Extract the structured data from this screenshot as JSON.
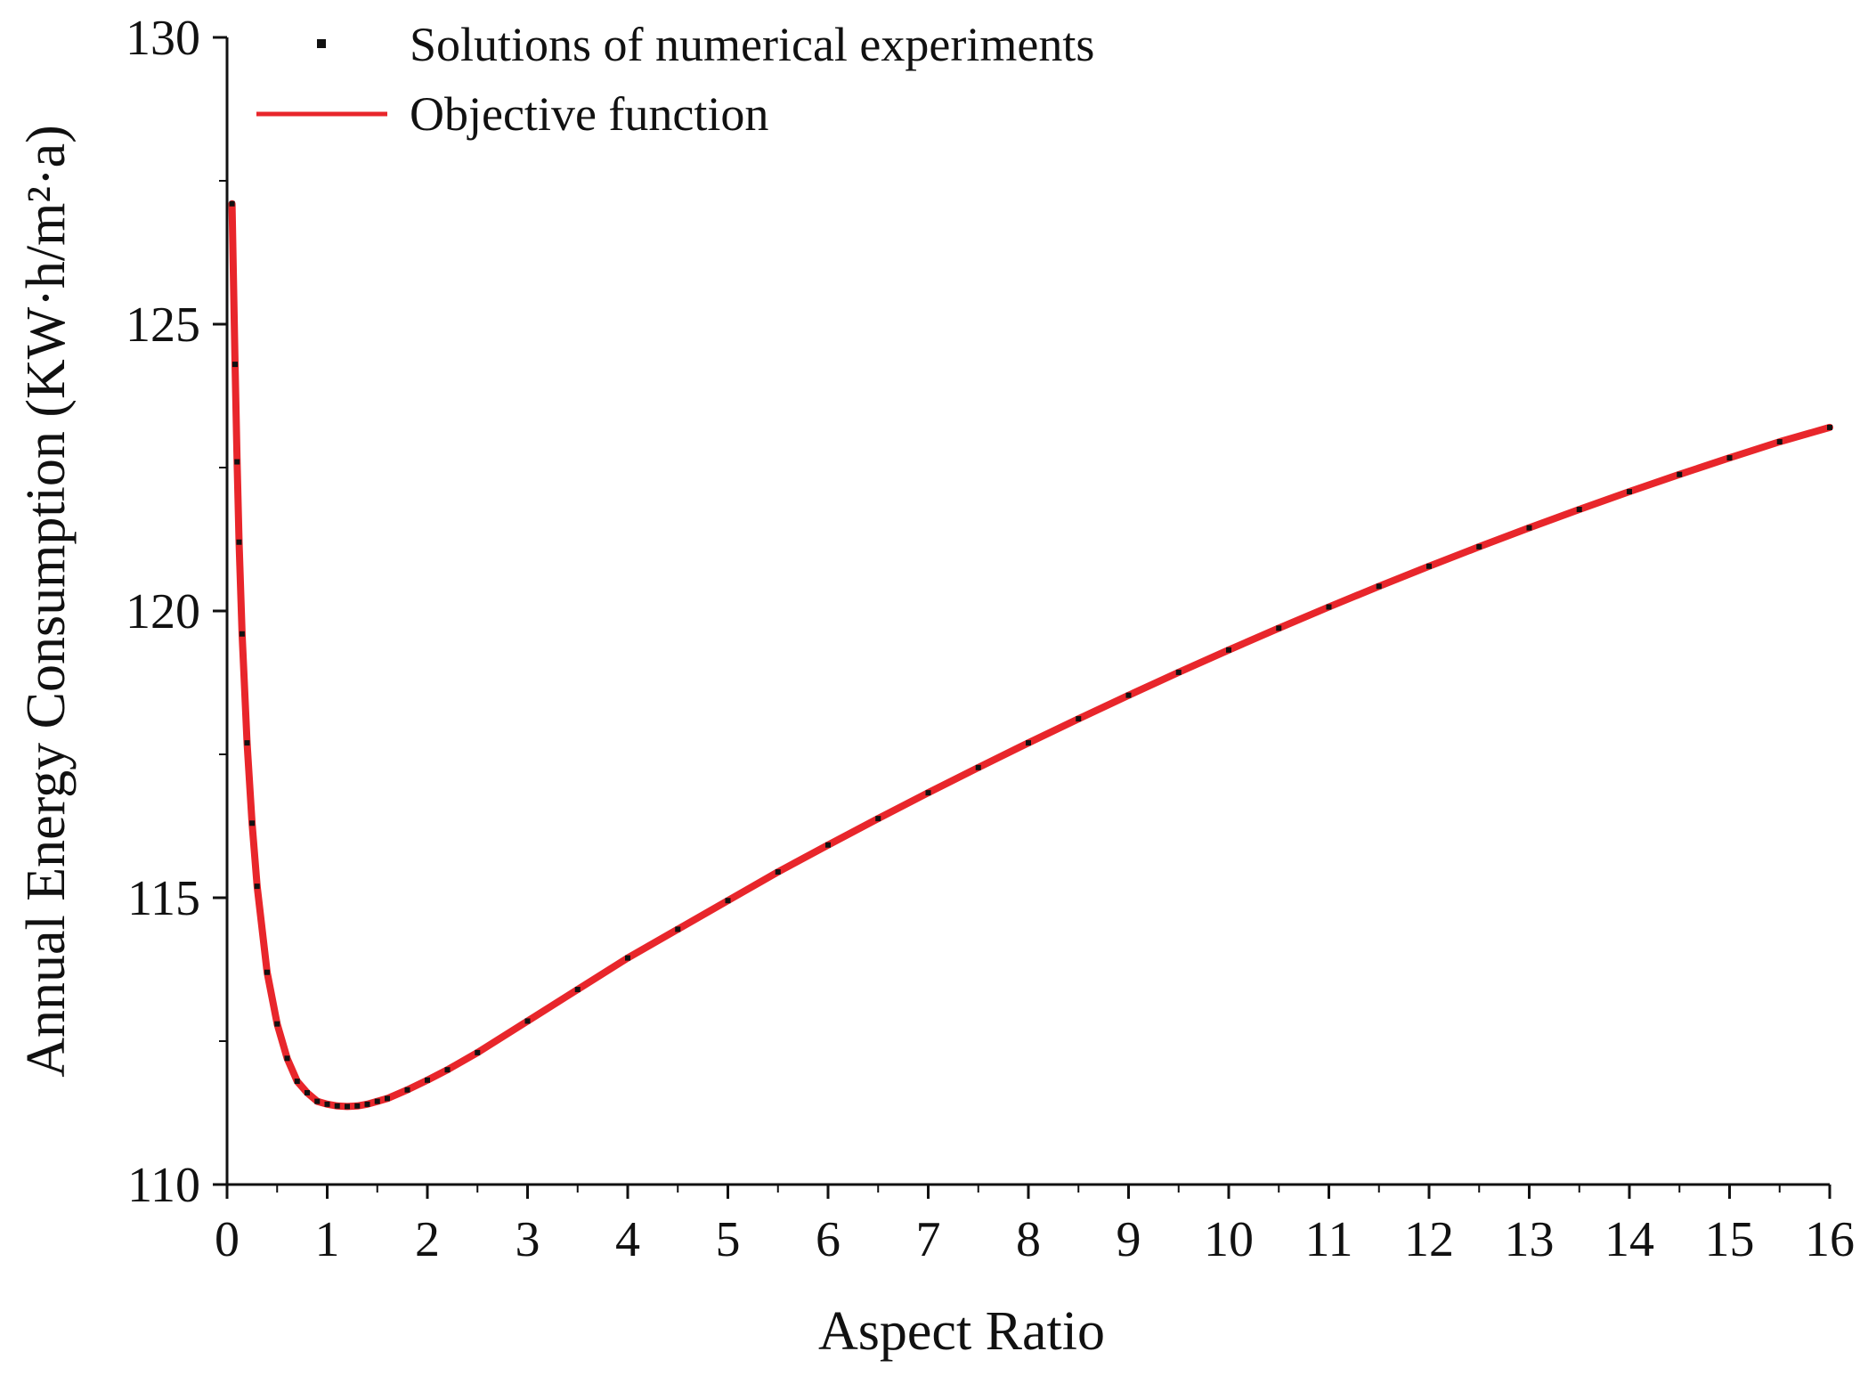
{
  "colors": {
    "fit_line": "#e8262b",
    "points": "#111111",
    "axis": "#111111",
    "background": "#ffffff"
  },
  "chart_data": {
    "type": "line",
    "xlabel": "Aspect Ratio",
    "ylabel": "Annual Energy Consumption (KW·h/m²·a)",
    "xlim": [
      0,
      16
    ],
    "ylim": [
      110,
      130
    ],
    "x_ticks": [
      "0",
      "1",
      "2",
      "3",
      "4",
      "5",
      "6",
      "7",
      "8",
      "9",
      "10",
      "11",
      "12",
      "13",
      "14",
      "15",
      "16"
    ],
    "y_ticks": [
      "110",
      "115",
      "120",
      "125",
      "130"
    ],
    "legend": {
      "placement": "top-left",
      "entries": [
        {
          "label": "Solutions of numerical experiments",
          "kind": "points"
        },
        {
          "label": "Objective function",
          "kind": "line"
        }
      ]
    },
    "series": [
      {
        "name": "Objective function",
        "kind": "line",
        "x": [
          0.05,
          0.08,
          0.1,
          0.12,
          0.15,
          0.2,
          0.25,
          0.3,
          0.4,
          0.5,
          0.6,
          0.7,
          0.8,
          0.9,
          1.0,
          1.1,
          1.2,
          1.3,
          1.4,
          1.5,
          1.6,
          1.8,
          2.0,
          2.2,
          2.5,
          3.0,
          3.5,
          4.0,
          4.5,
          5.0,
          5.5,
          6.0,
          6.5,
          7.0,
          7.5,
          8.0,
          8.5,
          9.0,
          9.5,
          10.0,
          10.5,
          11.0,
          11.5,
          12.0,
          12.5,
          13.0,
          13.5,
          14.0,
          14.5,
          15.0,
          15.5,
          16.0
        ],
        "y": [
          127.1,
          124.3,
          122.6,
          121.2,
          119.6,
          117.7,
          116.3,
          115.2,
          113.7,
          112.8,
          112.2,
          111.8,
          111.6,
          111.45,
          111.4,
          111.37,
          111.36,
          111.37,
          111.4,
          111.45,
          111.5,
          111.65,
          111.82,
          112.0,
          112.3,
          112.85,
          113.4,
          113.95,
          114.45,
          114.95,
          115.45,
          115.92,
          116.38,
          116.83,
          117.27,
          117.7,
          118.12,
          118.53,
          118.93,
          119.32,
          119.7,
          120.07,
          120.43,
          120.78,
          121.12,
          121.45,
          121.77,
          122.08,
          122.38,
          122.67,
          122.95,
          123.2
        ]
      },
      {
        "name": "Solutions of numerical experiments",
        "kind": "points",
        "x": [
          0.05,
          0.08,
          0.1,
          0.12,
          0.15,
          0.2,
          0.25,
          0.3,
          0.4,
          0.5,
          0.6,
          0.7,
          0.8,
          0.9,
          1.0,
          1.1,
          1.2,
          1.3,
          1.4,
          1.5,
          1.6,
          1.8,
          2.0,
          2.2,
          2.5,
          3.0,
          3.5,
          4.0,
          4.5,
          5.0,
          5.5,
          6.0,
          6.5,
          7.0,
          7.5,
          8.0,
          8.5,
          9.0,
          9.5,
          10.0,
          10.5,
          11.0,
          11.5,
          12.0,
          12.5,
          13.0,
          13.5,
          14.0,
          14.5,
          15.0,
          15.5,
          16.0
        ],
        "y": [
          127.1,
          124.3,
          122.6,
          121.2,
          119.6,
          117.7,
          116.3,
          115.2,
          113.7,
          112.8,
          112.2,
          111.8,
          111.6,
          111.45,
          111.4,
          111.37,
          111.36,
          111.37,
          111.4,
          111.45,
          111.5,
          111.65,
          111.82,
          112.0,
          112.3,
          112.85,
          113.4,
          113.95,
          114.45,
          114.95,
          115.45,
          115.92,
          116.38,
          116.83,
          117.27,
          117.7,
          118.12,
          118.53,
          118.93,
          119.32,
          119.7,
          120.07,
          120.43,
          120.78,
          121.12,
          121.45,
          121.77,
          122.08,
          122.38,
          122.67,
          122.95,
          123.2
        ]
      }
    ]
  }
}
